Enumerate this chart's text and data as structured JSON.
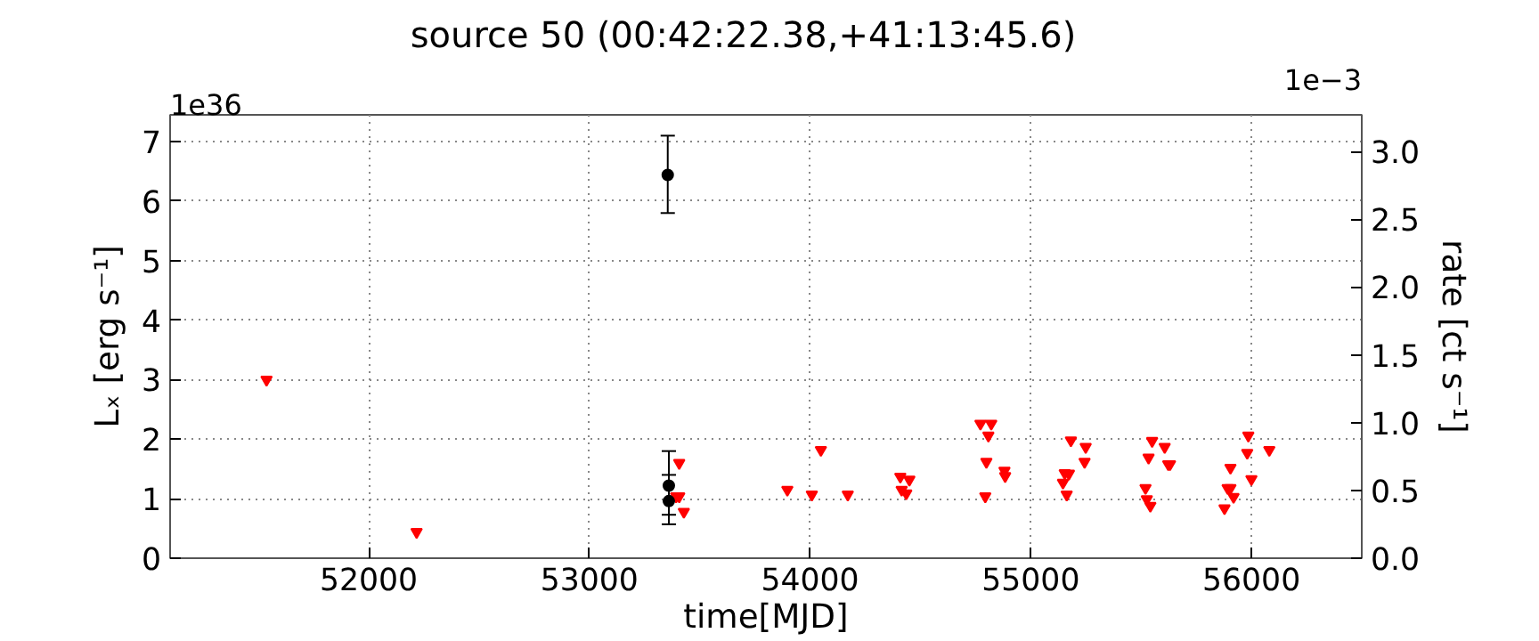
{
  "chart_data": {
    "type": "scatter",
    "title": "source 50     (00:42:22.38,+41:13:45.6)",
    "xlabel": "time[MJD]",
    "ylabel": "Lₓ [erg s⁻¹]",
    "y2label": "rate [ct s⁻¹]",
    "annotations": [
      "1e36",
      "1e−3"
    ],
    "xlim": [
      51100,
      56500
    ],
    "xticks": [
      52000,
      53000,
      54000,
      55000,
      56000
    ],
    "ylim": [
      0,
      7.45
    ],
    "yticks": [
      0,
      1,
      2,
      3,
      4,
      5,
      6,
      7
    ],
    "y2lim": [
      0,
      3.27
    ],
    "y2ticks": [
      {
        "value": 0,
        "label": "0.0"
      },
      {
        "value": 0.5,
        "label": "0.5"
      },
      {
        "value": 1,
        "label": "1.0"
      },
      {
        "value": 1.5,
        "label": "1.5"
      },
      {
        "value": 2,
        "label": "2.0"
      },
      {
        "value": 2.5,
        "label": "2.5"
      },
      {
        "value": 3,
        "label": "3.0"
      }
    ],
    "grid": true,
    "series": [
      {
        "color": "#ff0000",
        "marker": "triangle",
        "x": [
          51537,
          52217,
          53393,
          53407,
          53407,
          53428,
          53897,
          54008,
          54049,
          54171,
          54409,
          54415,
          54436,
          54450,
          54772,
          54794,
          54799,
          54808,
          54821,
          54881,
          54884,
          55146,
          55154,
          55163,
          55173,
          55182,
          55244,
          55249,
          55520,
          55526,
          55534,
          55542,
          55550,
          55607,
          55623,
          55631,
          55878,
          55892,
          55905,
          55905,
          55919,
          55981,
          55986,
          56000,
          56081
        ],
        "values": [
          3.0,
          0.44,
          1.04,
          1.6,
          1.04,
          0.78,
          1.15,
          1.07,
          1.82,
          1.07,
          1.37,
          1.15,
          1.09,
          1.32,
          2.26,
          1.04,
          1.62,
          2.06,
          2.26,
          1.47,
          1.38,
          1.27,
          1.43,
          1.07,
          1.42,
          1.98,
          1.62,
          1.87,
          1.18,
          0.99,
          1.69,
          0.88,
          1.97,
          1.87,
          1.58,
          1.58,
          0.84,
          1.18,
          1.18,
          1.52,
          1.03,
          1.77,
          2.06,
          1.33,
          1.82
        ]
      },
      {
        "color": "#000000",
        "marker": "circle",
        "x": [
          53355,
          53360,
          53360
        ],
        "values": [
          6.44,
          1.22,
          0.96
        ],
        "errors": [
          [
            5.8,
            7.1
          ],
          [
            0.73,
            1.8
          ],
          [
            0.57,
            1.4
          ]
        ]
      }
    ]
  }
}
